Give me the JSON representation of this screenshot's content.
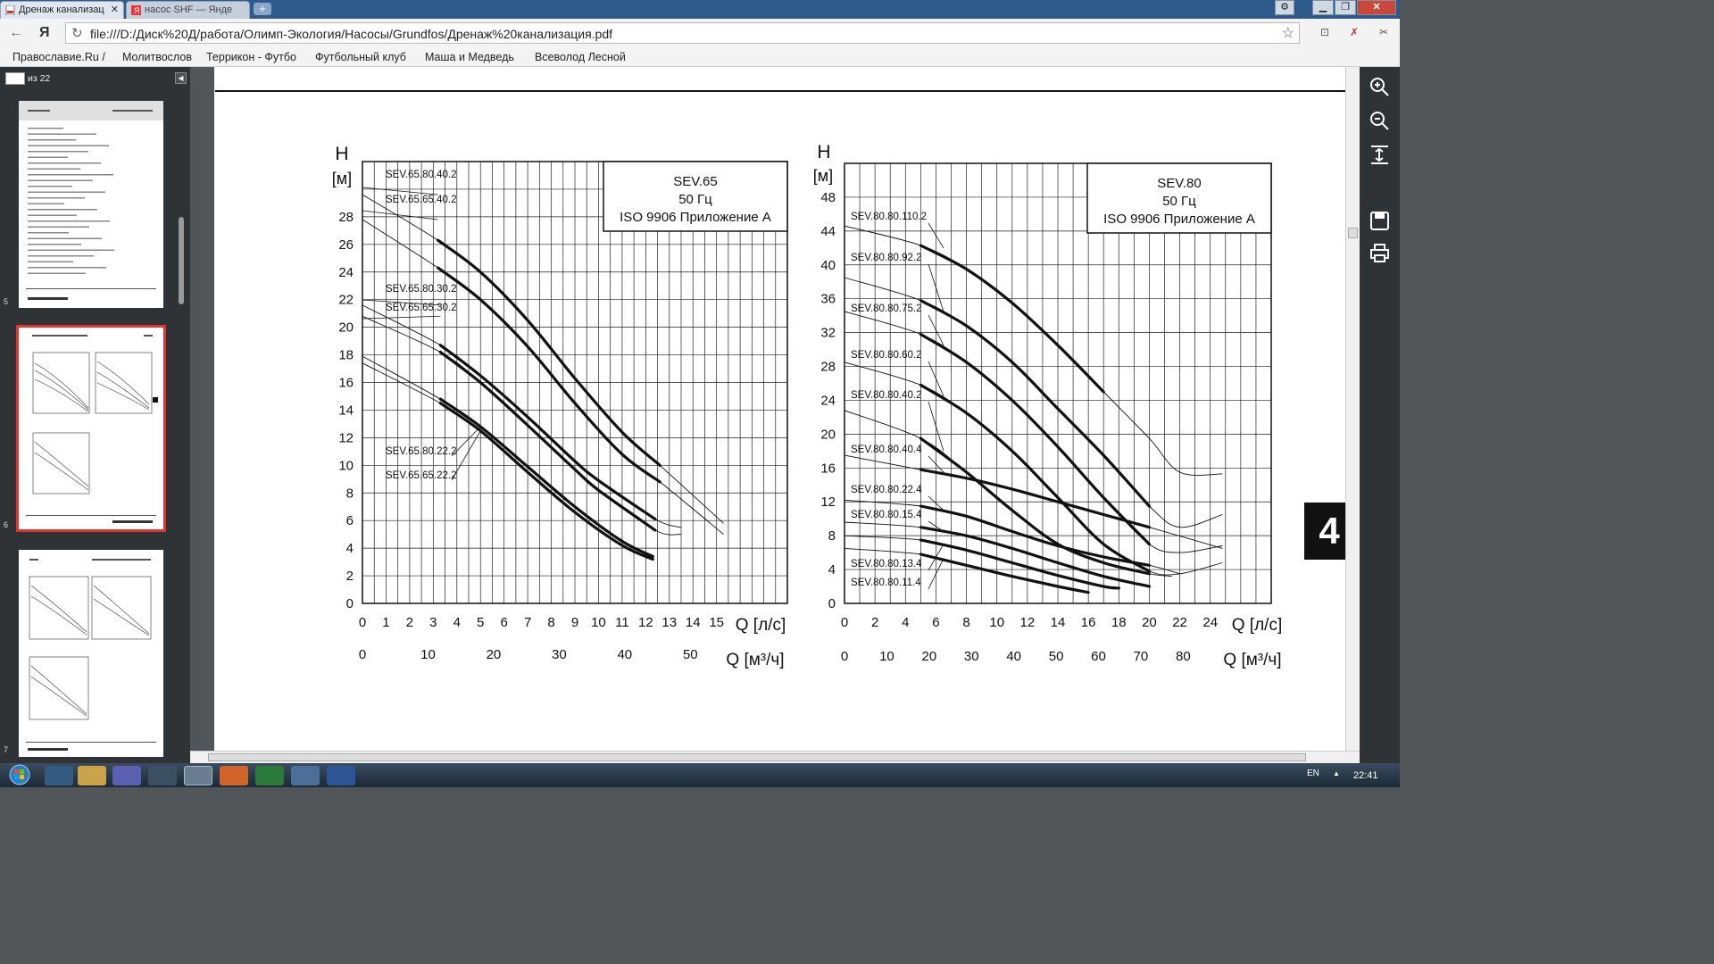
{
  "browser": {
    "tabs": [
      {
        "label": "Дренаж канализац",
        "active": true
      },
      {
        "label": "насос SHF — Янде",
        "active": false
      }
    ],
    "new_tab": "+",
    "address": "file:///D:/Диск%20Д/работа/Олимп-Экология/Насосы/Grundfos/Дренаж%20канализация.pdf",
    "nav_logo": "Я",
    "bookmarks": [
      "Православие.Ru /",
      "Молитвослов",
      "Террикон - Футбо",
      "Футбольный клуб",
      "Маша и Медведь",
      "Всеволод Лесной"
    ]
  },
  "pdf": {
    "page_of": "из 22",
    "section_number": "4",
    "thumb_numbers": [
      "5",
      "6",
      "7"
    ]
  },
  "taskbar": {
    "lang": "EN",
    "time": "22:41"
  },
  "chart_data": [
    {
      "type": "line",
      "legend_box": [
        "SEV.65",
        "50 Гц",
        "ISO 9906 Приложение А"
      ],
      "ylabel": "H",
      "yunit": "[м]",
      "xlabel": "Q [л/с]",
      "x2label": "Q [м³/ч]",
      "xlim": [
        0,
        18
      ],
      "ylim": [
        0,
        32
      ],
      "x_ticks": [
        0,
        1,
        2,
        3,
        4,
        5,
        6,
        7,
        8,
        9,
        10,
        11,
        12,
        13,
        14,
        15
      ],
      "y_ticks": [
        0,
        2,
        4,
        6,
        8,
        10,
        12,
        14,
        16,
        18,
        20,
        22,
        24,
        26,
        28
      ],
      "x2_ticks": [
        0,
        10,
        20,
        30,
        40,
        50
      ],
      "series": [
        {
          "name": "SEV.65.80.40.2",
          "x": [
            0,
            3.2,
            5,
            7,
            9,
            11,
            12.6,
            15.3
          ],
          "y": [
            29.6,
            26.3,
            24,
            20.5,
            16.3,
            12.4,
            10,
            5.8
          ],
          "operating": [
            3.2,
            12.6
          ]
        },
        {
          "name": "SEV.65.65.40.2",
          "x": [
            0,
            3.2,
            5,
            7,
            9,
            11,
            12.6,
            15.3
          ],
          "y": [
            27.8,
            24.3,
            22,
            18.6,
            14.5,
            10.8,
            8.8,
            5
          ],
          "operating": [
            3.2,
            12.6
          ]
        },
        {
          "name": "SEV.65.80.30.2",
          "x": [
            0,
            3.3,
            5,
            7,
            9,
            10,
            12.4,
            13.5
          ],
          "y": [
            21.6,
            18.7,
            16.5,
            13.5,
            10.3,
            8.9,
            6.1,
            5.5
          ],
          "operating": [
            3.3,
            12.4
          ]
        },
        {
          "name": "SEV.65.65.30.2",
          "x": [
            0,
            3.3,
            5,
            7,
            9,
            10,
            12.4,
            13.5
          ],
          "y": [
            20.8,
            18.2,
            16,
            12.9,
            9.7,
            8.2,
            5.3,
            5
          ],
          "operating": [
            3.3,
            12.4
          ]
        },
        {
          "name": "SEV.65.80.22.2",
          "x": [
            0,
            3.3,
            5,
            7,
            9,
            11,
            12.3
          ],
          "y": [
            17.9,
            14.8,
            12.8,
            9.9,
            7,
            4.5,
            3.4
          ],
          "operating": [
            3.3,
            12.3
          ]
        },
        {
          "name": "SEV.65.65.22.2",
          "x": [
            0,
            3.3,
            5,
            7,
            9,
            11,
            12.3
          ],
          "y": [
            17.4,
            14.5,
            12.5,
            9.5,
            6.6,
            4.2,
            3.2
          ],
          "operating": [
            3.3,
            12.3
          ]
        }
      ]
    },
    {
      "type": "line",
      "legend_box": [
        "SEV.80",
        "50 Гц",
        "ISO 9906 Приложение А"
      ],
      "ylabel": "H",
      "yunit": "[м]",
      "xlabel": "Q [л/с]",
      "x2label": "Q [м³/ч]",
      "xlim": [
        0,
        28
      ],
      "ylim": [
        0,
        52
      ],
      "x_ticks": [
        0,
        2,
        4,
        6,
        8,
        10,
        12,
        14,
        16,
        18,
        20,
        22,
        24
      ],
      "y_ticks": [
        0,
        4,
        8,
        12,
        16,
        20,
        24,
        28,
        32,
        36,
        40,
        44,
        48
      ],
      "x2_ticks": [
        0,
        10,
        20,
        30,
        40,
        50,
        60,
        70,
        80
      ],
      "series": [
        {
          "name": "SEV.80.80.110.2",
          "x": [
            0,
            5,
            8,
            11,
            14,
            17,
            20,
            22,
            24.8
          ],
          "y": [
            44.6,
            42.3,
            39.5,
            35.5,
            30.5,
            25,
            19.5,
            15.5,
            15.3
          ],
          "operating": [
            5,
            17
          ]
        },
        {
          "name": "SEV.80.80.92.2",
          "x": [
            0,
            5,
            8,
            11,
            14,
            17,
            20,
            22,
            24.8
          ],
          "y": [
            38.5,
            35.8,
            32.8,
            28.5,
            23,
            17.5,
            11.5,
            9,
            10.5
          ],
          "operating": [
            5,
            20
          ]
        },
        {
          "name": "SEV.80.80.75.2",
          "x": [
            0,
            5,
            8,
            11,
            14,
            17,
            20,
            22,
            24.8
          ],
          "y": [
            34.5,
            31.8,
            28.5,
            24,
            18.5,
            12.5,
            7,
            6,
            6.8
          ],
          "operating": [
            5,
            20
          ]
        },
        {
          "name": "SEV.80.80.60.2",
          "x": [
            0,
            5,
            8,
            11,
            14,
            17,
            20,
            22,
            24.8
          ],
          "y": [
            28.5,
            25.8,
            22.5,
            18,
            12.5,
            7,
            3.8,
            3.5,
            4.8
          ],
          "operating": [
            5,
            20
          ]
        },
        {
          "name": "SEV.80.80.40.2",
          "x": [
            0,
            5,
            8,
            11,
            14,
            17,
            20,
            21.5
          ],
          "y": [
            22.8,
            19.5,
            15.5,
            11,
            7,
            4.8,
            3.5,
            3.2
          ],
          "operating": [
            5,
            20
          ]
        },
        {
          "name": "SEV.80.80.40.4",
          "x": [
            0,
            5,
            8,
            11,
            14,
            17,
            20,
            24.8
          ],
          "y": [
            17.5,
            15.8,
            14.8,
            13.5,
            12,
            10.5,
            9,
            6.5
          ],
          "operating": [
            5,
            20
          ]
        },
        {
          "name": "SEV.80.80.22.4",
          "x": [
            0,
            5,
            8,
            11,
            14,
            17,
            20,
            22
          ],
          "y": [
            12.2,
            11.5,
            10.3,
            8.5,
            6.8,
            5.5,
            4.5,
            3.5
          ],
          "operating": [
            5,
            20
          ]
        },
        {
          "name": "SEV.80.80.15.4",
          "x": [
            0,
            5,
            8,
            11,
            14,
            17,
            20
          ],
          "y": [
            9.6,
            9,
            8,
            6.5,
            4.8,
            3.2,
            2
          ],
          "operating": [
            5,
            20
          ]
        },
        {
          "name": "SEV.80.80.13.4",
          "x": [
            0,
            5,
            8,
            11,
            14,
            17,
            18
          ],
          "y": [
            8,
            7.5,
            6.3,
            4.8,
            3.3,
            2,
            1.8
          ],
          "operating": [
            5,
            18
          ]
        },
        {
          "name": "SEV.80.80.11.4",
          "x": [
            0,
            5,
            8,
            11,
            14,
            16
          ],
          "y": [
            6.5,
            5.8,
            4.5,
            3.2,
            2,
            1.3
          ],
          "operating": [
            5,
            16
          ]
        }
      ]
    }
  ]
}
